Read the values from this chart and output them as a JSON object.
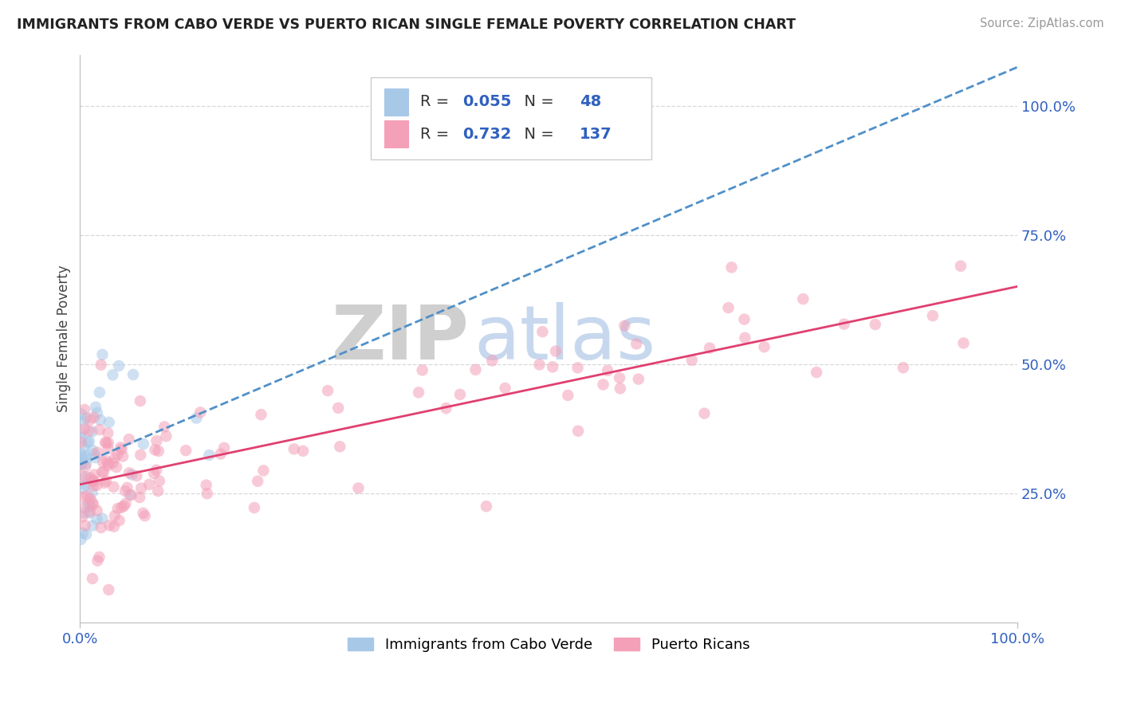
{
  "title": "IMMIGRANTS FROM CABO VERDE VS PUERTO RICAN SINGLE FEMALE POVERTY CORRELATION CHART",
  "source": "Source: ZipAtlas.com",
  "ylabel": "Single Female Poverty",
  "legend_label1": "Immigrants from Cabo Verde",
  "legend_label2": "Puerto Ricans",
  "R1": "0.055",
  "N1": "48",
  "R2": "0.732",
  "N2": "137",
  "color_blue": "#a8c8e8",
  "color_pink": "#f4a0b8",
  "color_blue_line": "#5090c8",
  "color_pink_line": "#e04070",
  "color_text_blue": "#3060c0",
  "ylim": [
    0,
    1.1
  ],
  "xlim": [
    0,
    1.0
  ],
  "yticks": [
    0.25,
    0.5,
    0.75,
    1.0
  ],
  "ytick_labels": [
    "25.0%",
    "50.0%",
    "75.0%",
    "100.0%"
  ],
  "grid_color": "#d8d8d8",
  "watermark_zip_color": "#c0c0c0",
  "watermark_atlas_color": "#b0c8e8"
}
